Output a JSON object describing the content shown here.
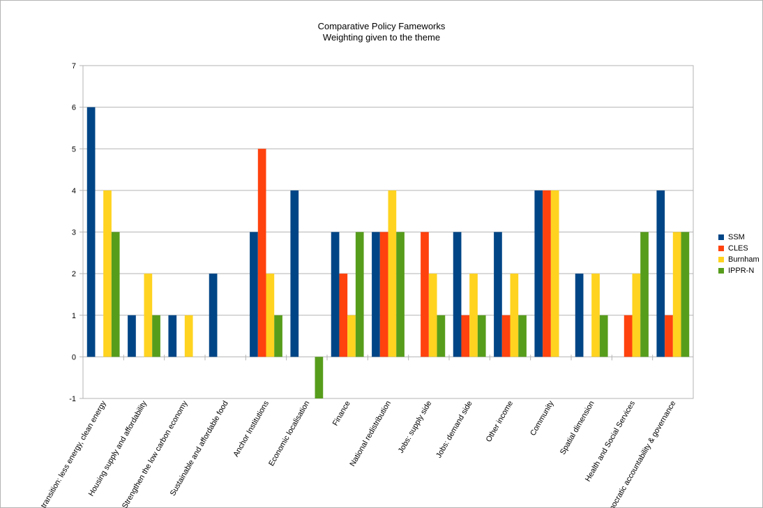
{
  "chart_data": {
    "type": "bar",
    "title": "Comparative Policy Fameworks",
    "subtitle": "Weighting given to the theme",
    "ylim": [
      -1,
      7
    ],
    "yticks": [
      -1,
      0,
      1,
      2,
      3,
      4,
      5,
      6,
      7
    ],
    "grid": true,
    "legend_placement": "right",
    "categories": [
      "Energy transition: less energy, clean energy",
      "Housing supply and affordability",
      "Strengthen the low carbon economy",
      "Sustainable and affordable food",
      "Anchor Institutions",
      "Economic localisation",
      "Finance",
      "National redistribution",
      "Jobs: supply side",
      "Jobs: demand side",
      "Other income",
      "Community",
      "Spatial dimension",
      "Health and Social Services",
      "Democratic accountability & governance"
    ],
    "series": [
      {
        "name": "SSM",
        "color": "#004586",
        "values": [
          6,
          1,
          1,
          2,
          3,
          4,
          3,
          3,
          0,
          3,
          3,
          4,
          2,
          0,
          4
        ]
      },
      {
        "name": "CLES",
        "color": "#ff420e",
        "values": [
          0,
          0,
          0,
          0,
          5,
          0,
          2,
          3,
          3,
          1,
          1,
          4,
          0,
          1,
          1
        ]
      },
      {
        "name": "Burnham",
        "color": "#ffd320",
        "values": [
          4,
          2,
          1,
          0,
          2,
          0,
          1,
          4,
          2,
          2,
          2,
          4,
          2,
          2,
          3
        ]
      },
      {
        "name": "IPPR-N",
        "color": "#579d1c",
        "values": [
          3,
          1,
          0,
          0,
          1,
          -1,
          3,
          3,
          1,
          1,
          1,
          0,
          1,
          3,
          3
        ]
      }
    ]
  }
}
